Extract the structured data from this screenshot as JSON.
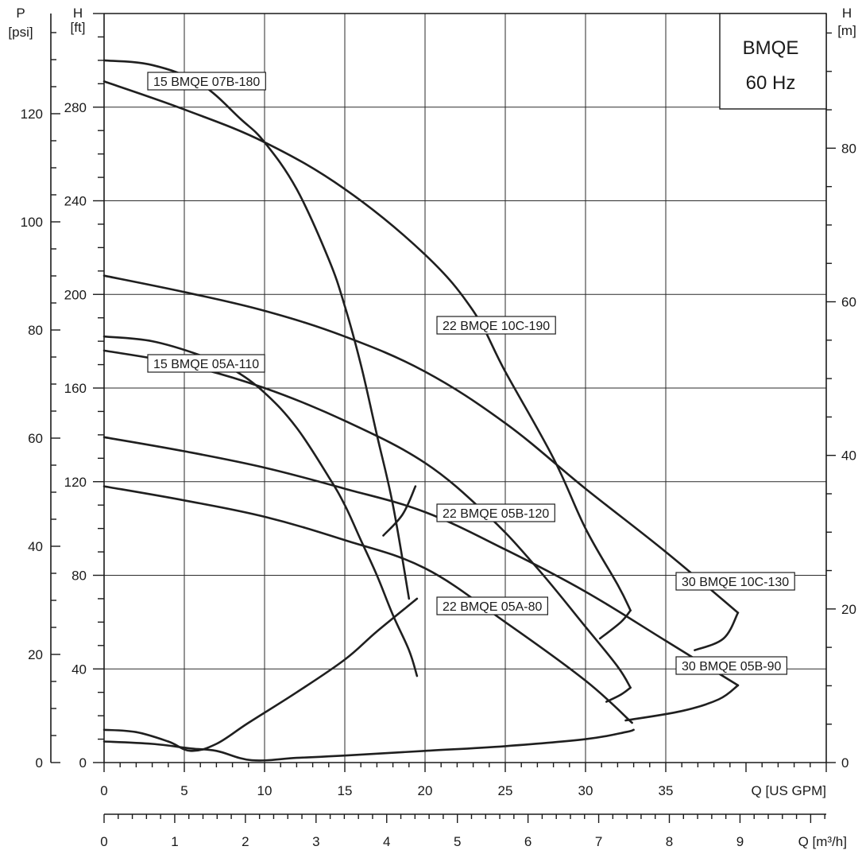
{
  "chart_data": {
    "type": "line",
    "title_box": {
      "line1": "BMQE",
      "line2": "60 Hz"
    },
    "x_axis": {
      "label": "Q [US GPM]",
      "range": [
        0,
        45
      ],
      "ticks": [
        0,
        5,
        10,
        15,
        20,
        25,
        30,
        35
      ]
    },
    "x_axis_secondary": {
      "label": "Q [m³/h]",
      "ticks": [
        0,
        1,
        2,
        3,
        4,
        5,
        6,
        7,
        8,
        9
      ]
    },
    "y_axis_head_ft": {
      "label_top": "H",
      "label_unit": "[ft]",
      "range": [
        0,
        320
      ],
      "ticks": [
        0,
        40,
        80,
        120,
        160,
        200,
        240,
        280
      ]
    },
    "y_axis_pressure_psi": {
      "label_top": "P",
      "label_unit": "[psi]",
      "ticks": [
        0,
        20,
        40,
        60,
        80,
        100,
        120
      ]
    },
    "y_axis_head_m": {
      "label_top": "H",
      "label_unit": "[m]",
      "ticks": [
        0,
        20,
        40,
        60,
        80
      ]
    },
    "grid": true,
    "series": [
      {
        "name": "15 BMQE 07B-180",
        "points": [
          [
            0,
            300
          ],
          [
            3,
            298
          ],
          [
            6,
            290
          ],
          [
            8.5,
            275
          ],
          [
            10,
            265
          ],
          [
            12,
            245
          ],
          [
            14,
            215
          ],
          [
            15,
            195
          ],
          [
            16,
            170
          ],
          [
            17,
            140
          ],
          [
            18,
            110
          ],
          [
            19,
            70
          ]
        ],
        "min_flow_point": [
          19.4,
          118
        ],
        "efficiency_points": [
          [
            17.4,
            97
          ],
          [
            18.6,
            106
          ],
          [
            19.4,
            118
          ]
        ]
      },
      {
        "name": "15 BMQE 05A-110",
        "points": [
          [
            0,
            182
          ],
          [
            3,
            180
          ],
          [
            6,
            174
          ],
          [
            8,
            168
          ],
          [
            10,
            158
          ],
          [
            12,
            143
          ],
          [
            14,
            122
          ],
          [
            15,
            110
          ],
          [
            16,
            95
          ],
          [
            17,
            80
          ],
          [
            18,
            63
          ],
          [
            19,
            48
          ],
          [
            19.5,
            37
          ]
        ],
        "min_flow_point": [
          19.5,
          37
        ]
      },
      {
        "name": "22 BMQE 10C-190",
        "points": [
          [
            0,
            291
          ],
          [
            5,
            279
          ],
          [
            10,
            265
          ],
          [
            15,
            245
          ],
          [
            20,
            217
          ],
          [
            23,
            193
          ],
          [
            25,
            167
          ],
          [
            28,
            130
          ],
          [
            30,
            100
          ],
          [
            32,
            76
          ],
          [
            32.8,
            65
          ]
        ],
        "efficiency_points": [
          [
            30.9,
            53
          ],
          [
            32.2,
            60
          ],
          [
            32.8,
            65
          ]
        ]
      },
      {
        "name": "22 BMQE 05B-120",
        "points": [
          [
            0,
            176
          ],
          [
            5,
            170
          ],
          [
            10,
            160
          ],
          [
            15,
            146
          ],
          [
            20,
            128
          ],
          [
            24,
            105
          ],
          [
            27,
            83
          ],
          [
            30,
            58
          ],
          [
            32,
            41
          ],
          [
            32.8,
            32
          ]
        ],
        "efficiency_points": [
          [
            31.3,
            26
          ],
          [
            32.2,
            29
          ],
          [
            32.8,
            32
          ]
        ]
      },
      {
        "name": "22 BMQE 05A-80",
        "points": [
          [
            0,
            118
          ],
          [
            5,
            112
          ],
          [
            10,
            105
          ],
          [
            15,
            95
          ],
          [
            20,
            83
          ],
          [
            25,
            60
          ],
          [
            30,
            35
          ],
          [
            32.9,
            17
          ]
        ],
        "min_flow_point": [
          32.9,
          17
        ]
      },
      {
        "name": "30 BMQE 10C-130",
        "points": [
          [
            0,
            208
          ],
          [
            5,
            201
          ],
          [
            10,
            193
          ],
          [
            15,
            182
          ],
          [
            20,
            167
          ],
          [
            25,
            145
          ],
          [
            30,
            117
          ],
          [
            35,
            90
          ],
          [
            39.5,
            64
          ]
        ],
        "efficiency_points": [
          [
            36.8,
            48
          ],
          [
            38.6,
            53
          ],
          [
            39.5,
            64
          ]
        ]
      },
      {
        "name": "30 BMQE 05B-90",
        "points": [
          [
            0,
            139
          ],
          [
            5,
            133
          ],
          [
            10,
            126
          ],
          [
            15,
            117
          ],
          [
            20,
            107
          ],
          [
            25,
            91
          ],
          [
            30,
            73
          ],
          [
            35,
            52
          ],
          [
            39.5,
            33
          ]
        ],
        "efficiency_points": [
          [
            32.5,
            18
          ],
          [
            36,
            22
          ],
          [
            38.3,
            27
          ],
          [
            39.5,
            33
          ]
        ]
      }
    ],
    "min_flow_envelopes": [
      {
        "points": [
          [
            0,
            14
          ],
          [
            2,
            13
          ],
          [
            4,
            9
          ],
          [
            5.4,
            5
          ],
          [
            7,
            8
          ],
          [
            9,
            17
          ],
          [
            12,
            30
          ],
          [
            15,
            44
          ],
          [
            17,
            56
          ],
          [
            19.5,
            70
          ]
        ]
      },
      {
        "points": [
          [
            0,
            9
          ],
          [
            3,
            8
          ],
          [
            5.4,
            6
          ],
          [
            7,
            5
          ],
          [
            9.2,
            1
          ],
          [
            12,
            2
          ],
          [
            15,
            3
          ],
          [
            20,
            5
          ],
          [
            25,
            7
          ],
          [
            30,
            10
          ],
          [
            32.5,
            13
          ],
          [
            33,
            14
          ]
        ]
      }
    ]
  }
}
